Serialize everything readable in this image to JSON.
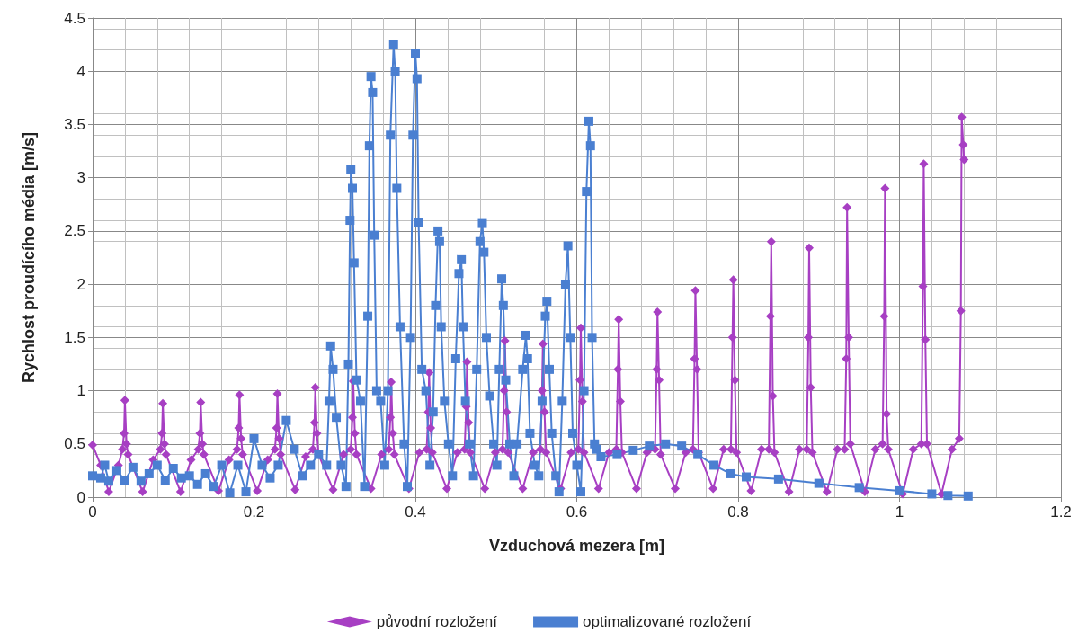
{
  "chart_data": {
    "type": "line",
    "xlabel": "Vzduchová mezera [m]",
    "ylabel": "Rychlost proudícího média [m/s]",
    "xlim": [
      0,
      1.2
    ],
    "xticks": [
      0,
      0.2,
      0.4,
      0.6,
      0.8,
      1,
      1.2
    ],
    "ylim": [
      0,
      4.5
    ],
    "yticks": [
      0,
      0.5,
      1,
      1.5,
      2,
      2.5,
      3,
      3.5,
      4,
      4.5
    ],
    "grid": true,
    "legend": "bottom",
    "line_style": "solid",
    "series": [
      {
        "name": "původní rozložení",
        "color": "#a73fc3",
        "marker": "diamond",
        "x": [
          0,
          0.01,
          0.02,
          0.032,
          0.037,
          0.039,
          0.04,
          0.042,
          0.044,
          0.062,
          0.075,
          0.084,
          0.086,
          0.087,
          0.089,
          0.091,
          0.109,
          0.122,
          0.131,
          0.133,
          0.134,
          0.136,
          0.138,
          0.156,
          0.169,
          0.179,
          0.181,
          0.182,
          0.184,
          0.186,
          0.204,
          0.217,
          0.226,
          0.228,
          0.229,
          0.231,
          0.233,
          0.251,
          0.264,
          0.273,
          0.275,
          0.276,
          0.278,
          0.28,
          0.298,
          0.311,
          0.32,
          0.322,
          0.323,
          0.325,
          0.327,
          0.345,
          0.358,
          0.367,
          0.369,
          0.37,
          0.372,
          0.374,
          0.392,
          0.405,
          0.414,
          0.416,
          0.417,
          0.419,
          0.421,
          0.439,
          0.452,
          0.461,
          0.463,
          0.464,
          0.466,
          0.468,
          0.486,
          0.499,
          0.508,
          0.51,
          0.511,
          0.513,
          0.515,
          0.533,
          0.546,
          0.555,
          0.557,
          0.558,
          0.56,
          0.562,
          0.58,
          0.593,
          0.602,
          0.604,
          0.605,
          0.607,
          0.609,
          0.627,
          0.64,
          0.649,
          0.651,
          0.652,
          0.654,
          0.656,
          0.674,
          0.687,
          0.697,
          0.699,
          0.7,
          0.702,
          0.704,
          0.722,
          0.735,
          0.744,
          0.746,
          0.747,
          0.749,
          0.751,
          0.769,
          0.782,
          0.791,
          0.793,
          0.794,
          0.796,
          0.798,
          0.816,
          0.829,
          0.838,
          0.84,
          0.841,
          0.843,
          0.845,
          0.863,
          0.876,
          0.885,
          0.887,
          0.888,
          0.89,
          0.892,
          0.91,
          0.923,
          0.932,
          0.934,
          0.935,
          0.937,
          0.939,
          0.957,
          0.97,
          0.979,
          0.981,
          0.982,
          0.984,
          0.986,
          1.004,
          1.017,
          1.027,
          1.029,
          1.03,
          1.032,
          1.034,
          1.052,
          1.065,
          1.074,
          1.076,
          1.077,
          1.079,
          1.08
        ],
        "values": [
          0.49,
          0.3,
          0.05,
          0.3,
          0.45,
          0.6,
          0.91,
          0.5,
          0.4,
          0.05,
          0.35,
          0.45,
          0.6,
          0.88,
          0.5,
          0.4,
          0.05,
          0.35,
          0.45,
          0.6,
          0.89,
          0.5,
          0.4,
          0.06,
          0.35,
          0.45,
          0.65,
          0.96,
          0.55,
          0.4,
          0.06,
          0.35,
          0.45,
          0.65,
          0.97,
          0.55,
          0.4,
          0.07,
          0.38,
          0.45,
          0.7,
          1.03,
          0.6,
          0.4,
          0.07,
          0.4,
          0.45,
          0.75,
          1.09,
          0.6,
          0.4,
          0.08,
          0.4,
          0.45,
          0.75,
          1.08,
          0.6,
          0.4,
          0.08,
          0.42,
          0.45,
          0.8,
          1.17,
          0.65,
          0.42,
          0.08,
          0.42,
          0.45,
          0.85,
          1.27,
          0.7,
          0.42,
          0.08,
          0.42,
          0.45,
          1.0,
          1.47,
          0.8,
          0.42,
          0.08,
          0.42,
          0.45,
          1.0,
          1.44,
          0.8,
          0.42,
          0.08,
          0.42,
          0.45,
          1.1,
          1.59,
          0.9,
          0.42,
          0.08,
          0.42,
          0.45,
          1.2,
          1.67,
          0.9,
          0.42,
          0.08,
          0.42,
          0.45,
          1.2,
          1.74,
          1.1,
          0.4,
          0.08,
          0.42,
          0.45,
          1.3,
          1.94,
          1.2,
          0.42,
          0.08,
          0.45,
          0.45,
          1.5,
          2.04,
          1.1,
          0.42,
          0.06,
          0.45,
          0.45,
          1.7,
          2.4,
          0.95,
          0.42,
          0.05,
          0.45,
          0.45,
          1.5,
          2.34,
          1.03,
          0.42,
          0.05,
          0.45,
          0.45,
          1.3,
          2.72,
          1.5,
          0.5,
          0.05,
          0.45,
          0.5,
          1.7,
          2.9,
          0.78,
          0.45,
          0.03,
          0.45,
          0.5,
          1.98,
          3.13,
          1.48,
          0.5,
          0.03,
          0.45,
          0.55,
          1.75,
          3.57,
          3.31,
          3.17
        ]
      },
      {
        "name": "optimalizované rozložení",
        "color": "#4a7fd1",
        "marker": "square",
        "x": [
          0,
          0.01,
          0.015,
          0.02,
          0.03,
          0.04,
          0.05,
          0.06,
          0.07,
          0.08,
          0.09,
          0.1,
          0.11,
          0.12,
          0.13,
          0.14,
          0.15,
          0.16,
          0.17,
          0.18,
          0.19,
          0.2,
          0.21,
          0.22,
          0.23,
          0.24,
          0.25,
          0.26,
          0.27,
          0.28,
          0.29,
          0.293,
          0.295,
          0.298,
          0.302,
          0.308,
          0.314,
          0.317,
          0.319,
          0.32,
          0.322,
          0.324,
          0.327,
          0.332,
          0.337,
          0.341,
          0.343,
          0.345,
          0.347,
          0.349,
          0.352,
          0.357,
          0.362,
          0.366,
          0.369,
          0.373,
          0.375,
          0.377,
          0.381,
          0.386,
          0.39,
          0.394,
          0.397,
          0.4,
          0.402,
          0.404,
          0.408,
          0.413,
          0.418,
          0.422,
          0.425,
          0.428,
          0.43,
          0.432,
          0.436,
          0.441,
          0.446,
          0.45,
          0.454,
          0.457,
          0.459,
          0.462,
          0.467,
          0.472,
          0.476,
          0.48,
          0.483,
          0.485,
          0.488,
          0.492,
          0.497,
          0.501,
          0.504,
          0.507,
          0.509,
          0.512,
          0.517,
          0.522,
          0.526,
          0.533,
          0.537,
          0.539,
          0.542,
          0.548,
          0.553,
          0.557,
          0.561,
          0.563,
          0.566,
          0.569,
          0.574,
          0.578,
          0.582,
          0.586,
          0.589,
          0.592,
          0.595,
          0.6,
          0.605,
          0.609,
          0.612,
          0.615,
          0.617,
          0.619,
          0.622,
          0.625,
          0.63,
          0.65,
          0.67,
          0.69,
          0.71,
          0.73,
          0.75,
          0.77,
          0.79,
          0.81,
          0.85,
          0.9,
          0.95,
          1.0,
          1.04,
          1.06,
          1.085
        ],
        "values": [
          0.2,
          0.18,
          0.3,
          0.15,
          0.25,
          0.16,
          0.28,
          0.15,
          0.22,
          0.3,
          0.16,
          0.27,
          0.18,
          0.2,
          0.12,
          0.22,
          0.1,
          0.3,
          0.04,
          0.3,
          0.05,
          0.55,
          0.3,
          0.18,
          0.3,
          0.72,
          0.45,
          0.2,
          0.3,
          0.4,
          0.3,
          0.9,
          1.42,
          1.2,
          0.75,
          0.3,
          0.1,
          1.25,
          2.6,
          3.08,
          2.9,
          2.2,
          1.1,
          0.9,
          0.1,
          1.7,
          3.3,
          3.95,
          3.8,
          2.46,
          1.0,
          0.9,
          0.3,
          1.0,
          3.4,
          4.25,
          4.0,
          2.9,
          1.6,
          0.5,
          0.1,
          1.5,
          3.4,
          4.17,
          3.93,
          2.58,
          1.2,
          1.0,
          0.3,
          0.8,
          1.8,
          2.5,
          2.4,
          1.6,
          0.9,
          0.5,
          0.2,
          1.3,
          2.1,
          2.23,
          1.6,
          0.9,
          0.5,
          0.2,
          1.2,
          2.4,
          2.57,
          2.3,
          1.5,
          0.95,
          0.5,
          0.3,
          1.2,
          2.05,
          1.8,
          1.1,
          0.5,
          0.2,
          0.5,
          1.2,
          1.52,
          1.3,
          0.6,
          0.3,
          0.2,
          0.9,
          1.7,
          1.84,
          1.2,
          0.6,
          0.2,
          0.05,
          0.9,
          2.0,
          2.36,
          1.5,
          0.6,
          0.3,
          0.05,
          1.0,
          2.87,
          3.53,
          3.3,
          1.5,
          0.5,
          0.45,
          0.38,
          0.4,
          0.44,
          0.48,
          0.5,
          0.48,
          0.4,
          0.3,
          0.22,
          0.19,
          0.17,
          0.13,
          0.09,
          0.06,
          0.03,
          0.015,
          0.01
        ]
      }
    ]
  }
}
